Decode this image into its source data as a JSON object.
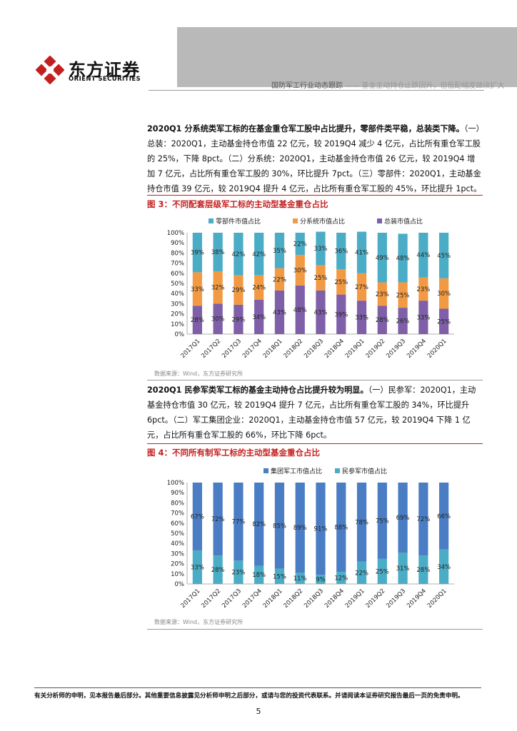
{
  "header": {
    "brand_cn": "东方证券",
    "brand_en": "ORIENT SECURITIES",
    "report_title": "国防军工行业动态跟踪",
    "report_subtitle": "—— 基金主动持仓止跌回升，但低配幅度继续扩大"
  },
  "section1": {
    "bold": "2020Q1 分系统类军工标的在基金重仓军工股中占比提升，零部件类平稳，总装类下降。",
    "text": "（一）总装：2020Q1，主动基金持仓市值 22 亿元，较 2019Q4 减少 4 亿元，占比所有重仓军工股的 25%，下降 8pct。（二）分系统：2020Q1，主动基金持仓市值 26 亿元，较 2019Q4 增加 7 亿元，占比所有重仓军工股的 30%，环比提升 7pct。（三）零部件：2020Q1，主动基金持仓市值 39 亿元，较 2019Q4 提升 4 亿元，占比所有重仓军工股的 45%，环比提升 1pct。"
  },
  "figure3": {
    "title": "图 3：不同配套层级军工标的主动型基金重仓占比",
    "source": "数据来源：Wind，东方证券研究所"
  },
  "section2": {
    "bold": "2020Q1 民参军类军工标的基金主动持仓占比提升较为明显。",
    "text": "（一）民参军：2020Q1，主动基金持仓市值 30 亿元，较 2019Q4 提升 7 亿元，占比所有重仓军工股的 34%，环比提升 6pct。（二）军工集团企业：2020Q1，主动基金持仓市值 57 亿元，较 2019Q4 下降 1 亿元，占比所有重仓军工股的 66%，环比下降 6pct。"
  },
  "figure4": {
    "title": "图 4：不同所有制军工标的主动型基金重仓占比",
    "source": "数据来源：Wind，东方证券研究所"
  },
  "footer": {
    "disclaimer": "有关分析师的申明，见本报告最后部分。其他重要信息披露见分析师申明之后部分，或请与您的投资代表联系。并请阅读本证券研究报告最后一页的免责申明。",
    "page_number": "5"
  },
  "colors": {
    "brand_red": "#c41f1f",
    "assembly": "#7e5fa8",
    "subsystem": "#f29a43",
    "component": "#4bacc6",
    "group": "#4a7dc4",
    "civil": "#4bacc6"
  },
  "chart_data": [
    {
      "type": "bar",
      "stacked": true,
      "categories": [
        "2017Q1",
        "2017Q2",
        "2017Q3",
        "2017Q4",
        "2018Q1",
        "2018Q2",
        "2018Q3",
        "2018Q4",
        "2019Q1",
        "2019Q2",
        "2019Q3",
        "2019Q4",
        "2020Q1"
      ],
      "series": [
        {
          "name": "总装市值占比",
          "values": [
            28,
            30,
            29,
            34,
            43,
            48,
            43,
            39,
            33,
            28,
            26,
            33,
            25
          ],
          "color": "#7e5fa8"
        },
        {
          "name": "分系统市值占比",
          "values": [
            33,
            32,
            29,
            24,
            22,
            30,
            25,
            25,
            27,
            23,
            25,
            23,
            30
          ],
          "color": "#f29a43"
        },
        {
          "name": "零部件市值占比",
          "values": [
            39,
            38,
            42,
            42,
            35,
            22,
            33,
            36,
            41,
            49,
            48,
            44,
            45
          ],
          "color": "#4bacc6"
        }
      ],
      "legend_order": [
        "零部件市值占比",
        "分系统市值占比",
        "总装市值占比"
      ],
      "yticks": [
        "0%",
        "10%",
        "20%",
        "30%",
        "40%",
        "50%",
        "60%",
        "70%",
        "80%",
        "90%",
        "100%"
      ],
      "ylim": [
        0,
        100
      ],
      "legend": "top"
    },
    {
      "type": "bar",
      "stacked": true,
      "categories": [
        "2017Q1",
        "2017Q2",
        "2017Q3",
        "2017Q4",
        "2018Q1",
        "2018Q2",
        "2018Q3",
        "2018Q4",
        "2019Q1",
        "2019Q2",
        "2019Q3",
        "2019Q4",
        "2020Q1"
      ],
      "series": [
        {
          "name": "民参军市值占比",
          "values": [
            33,
            28,
            23,
            18,
            15,
            11,
            9,
            12,
            22,
            25,
            31,
            28,
            34
          ],
          "color": "#4bacc6"
        },
        {
          "name": "集团军工市值占比",
          "values": [
            67,
            72,
            77,
            82,
            85,
            89,
            91,
            88,
            78,
            75,
            69,
            72,
            66
          ],
          "color": "#4a7dc4"
        }
      ],
      "legend_order": [
        "集团军工市值占比",
        "民参军市值占比"
      ],
      "yticks": [
        "0%",
        "10%",
        "20%",
        "30%",
        "40%",
        "50%",
        "60%",
        "70%",
        "80%",
        "90%",
        "100%"
      ],
      "ylim": [
        0,
        100
      ],
      "legend": "top"
    }
  ]
}
